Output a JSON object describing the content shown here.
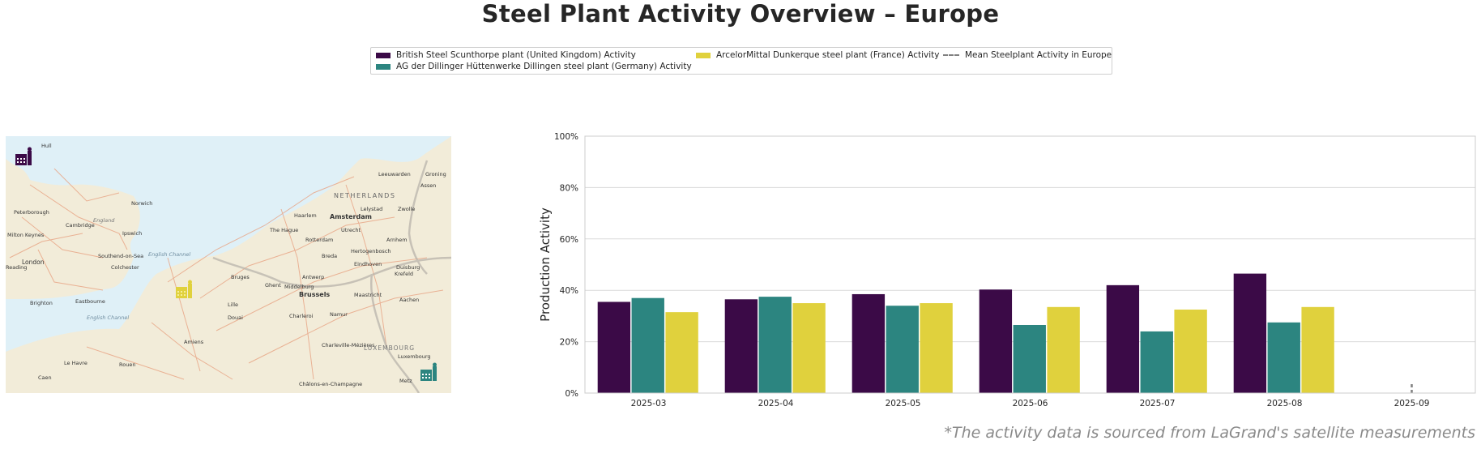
{
  "page": {
    "title": "Steel Plant Activity Overview – Europe",
    "footnote": "*The activity data is sourced from LaGrand's satellite measurements"
  },
  "legend": {
    "items": [
      {
        "label": "British Steel Scunthorpe plant (United Kingdom) Activity",
        "color": "#3b0a47",
        "kind": "bar"
      },
      {
        "label": "AG der Dillinger Hüttenwerke Dillingen steel plant (Germany) Activity",
        "color": "#2c8580",
        "kind": "bar"
      },
      {
        "label": "ArcelorMittal Dunkerque steel plant (France) Activity",
        "color": "#e0d13d",
        "kind": "bar"
      },
      {
        "label": "Mean Steelplant Activity in Europe",
        "color": "#808080",
        "kind": "dashed-line"
      }
    ]
  },
  "map": {
    "labels": [
      {
        "text": "Hull"
      },
      {
        "text": "Leeuwarden"
      },
      {
        "text": "Groning"
      },
      {
        "text": "Assen"
      },
      {
        "text": "NETHERLANDS"
      },
      {
        "text": "Norwich"
      },
      {
        "text": "Peterborough"
      },
      {
        "text": "England"
      },
      {
        "text": "Cambridge"
      },
      {
        "text": "Ipswich"
      },
      {
        "text": "Milton Keynes"
      },
      {
        "text": "Haarlem"
      },
      {
        "text": "Amsterdam"
      },
      {
        "text": "Lelystad"
      },
      {
        "text": "Zwolle"
      },
      {
        "text": "The Hague"
      },
      {
        "text": "Utrecht"
      },
      {
        "text": "Rotterdam"
      },
      {
        "text": "Arnhem"
      },
      {
        "text": "London"
      },
      {
        "text": "Southend-on-Sea"
      },
      {
        "text": "Colchester"
      },
      {
        "text": "English Channel"
      },
      {
        "text": "Reading"
      },
      {
        "text": "Middelburg"
      },
      {
        "text": "Breda"
      },
      {
        "text": "Hertogenbosch"
      },
      {
        "text": "Eindhoven"
      },
      {
        "text": "Duisburg"
      },
      {
        "text": "Krefeld"
      },
      {
        "text": "Bruges"
      },
      {
        "text": "Ghent"
      },
      {
        "text": "Antwerp"
      },
      {
        "text": "Brighton"
      },
      {
        "text": "Eastbourne"
      },
      {
        "text": "Brussels"
      },
      {
        "text": "Maastricht"
      },
      {
        "text": "Aachen"
      },
      {
        "text": "Lille"
      },
      {
        "text": "English Channel"
      },
      {
        "text": "Charleroi"
      },
      {
        "text": "Namur"
      },
      {
        "text": "Douai"
      },
      {
        "text": "Amiens"
      },
      {
        "text": "Charleville-Mézières"
      },
      {
        "text": "LUXEMBOURG"
      },
      {
        "text": "Luxembourg"
      },
      {
        "text": "Le Havre"
      },
      {
        "text": "Rouen"
      },
      {
        "text": "Caen"
      },
      {
        "text": "Châlons-en-Champagne"
      },
      {
        "text": "Metz"
      }
    ],
    "markers": [
      {
        "name": "scunthorpe-plant-marker-icon",
        "color": "#3b0a47"
      },
      {
        "name": "dunkerque-plant-marker-icon",
        "color": "#e0d13d"
      },
      {
        "name": "dillingen-plant-marker-icon",
        "color": "#2c8580"
      }
    ]
  },
  "chart_data": {
    "type": "bar",
    "title": "",
    "xlabel": "",
    "ylabel": "Production Activity",
    "categories": [
      "2025-03",
      "2025-04",
      "2025-05",
      "2025-06",
      "2025-07",
      "2025-08",
      "2025-09"
    ],
    "series": [
      {
        "name": "British Steel Scunthorpe plant (United Kingdom) Activity",
        "color": "#3b0a47",
        "values": [
          35.5,
          36.5,
          38.5,
          40.3,
          42.0,
          46.5,
          null
        ]
      },
      {
        "name": "AG der Dillinger Hüttenwerke Dillingen steel plant (Germany) Activity",
        "color": "#2c8580",
        "values": [
          37.0,
          37.5,
          34.0,
          26.5,
          24.0,
          27.5,
          null
        ]
      },
      {
        "name": "ArcelorMittal Dunkerque steel plant (France) Activity",
        "color": "#e0d13d",
        "values": [
          31.5,
          35.0,
          35.0,
          33.5,
          32.5,
          33.5,
          null
        ]
      }
    ],
    "mean_line": {
      "name": "Mean Steelplant Activity in Europe",
      "color": "#808080",
      "category": "2025-09",
      "range": [
        0,
        4
      ]
    },
    "ylim": [
      0,
      100
    ],
    "yticks": [
      0,
      20,
      40,
      60,
      80,
      100
    ],
    "ytick_labels": [
      "0%",
      "20%",
      "40%",
      "60%",
      "80%",
      "100%"
    ],
    "grid": true
  }
}
